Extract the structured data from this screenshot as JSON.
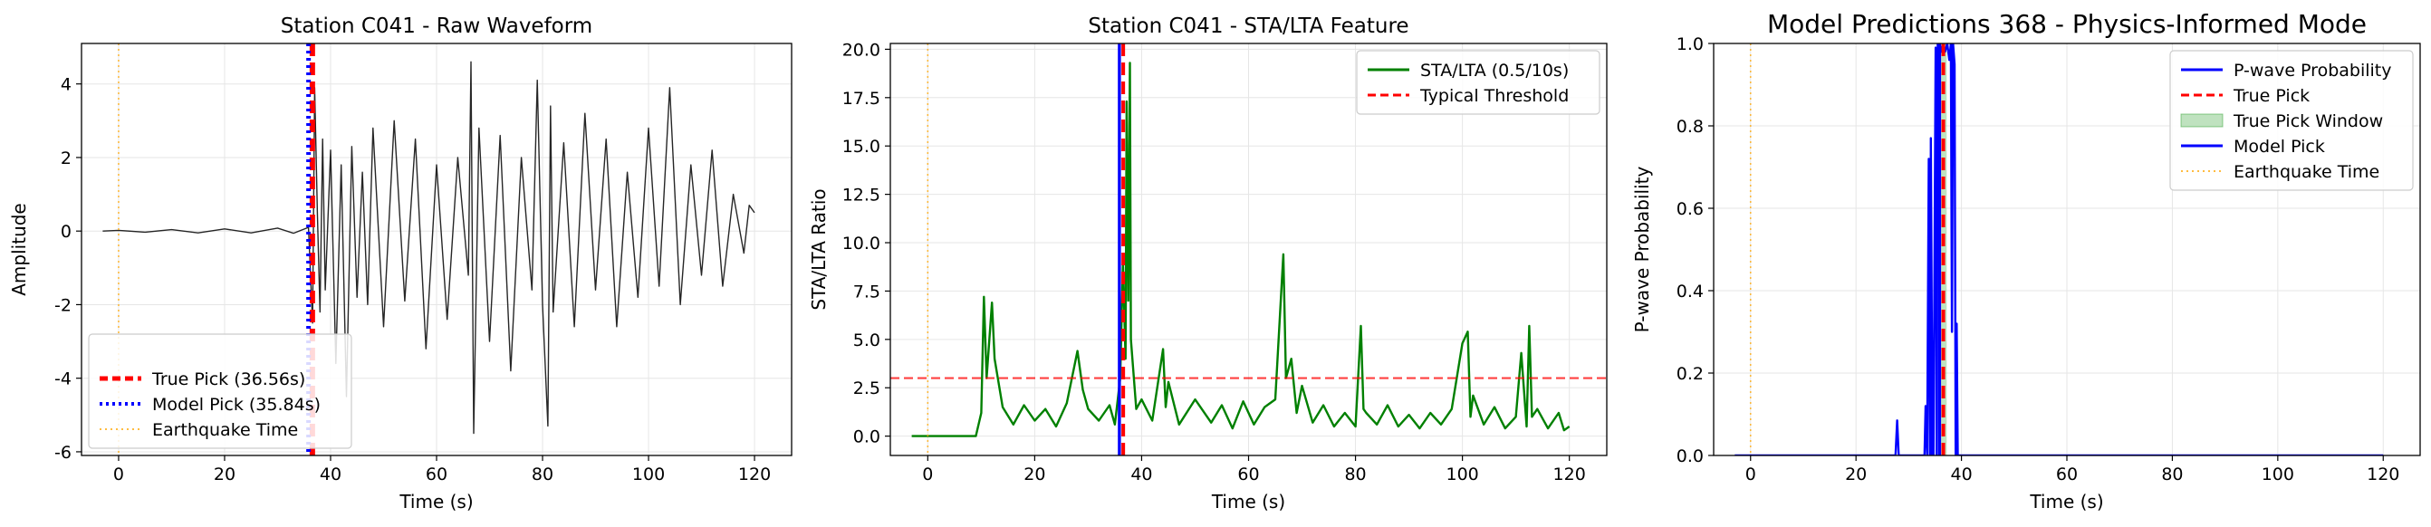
{
  "chart_data": [
    {
      "type": "line",
      "title": "Station C041 - Raw Waveform",
      "xlabel": "Time (s)",
      "ylabel": "Amplitude",
      "xlim": [
        -7,
        127
      ],
      "ylim": [
        -6.1,
        5.1
      ],
      "xticks": [
        0,
        20,
        40,
        60,
        80,
        100,
        120
      ],
      "yticks": [
        -6,
        -4,
        -2,
        0,
        2,
        4
      ],
      "grid": true,
      "legend_position": "lower-left",
      "series": [
        {
          "name": "Waveform",
          "color": "#000000",
          "x": [
            -3,
            0,
            5,
            10,
            15,
            20,
            25,
            30,
            33,
            35.84,
            36.6,
            37,
            37.5,
            38,
            38.5,
            39,
            40,
            41,
            42,
            43,
            44,
            45,
            46,
            47,
            48,
            50,
            52,
            54,
            56,
            58,
            60,
            62,
            64,
            66,
            66.5,
            67,
            68,
            70,
            72,
            74,
            76,
            78,
            79,
            80,
            81,
            81.5,
            82,
            84,
            86,
            88,
            90,
            92,
            94,
            96,
            98,
            100,
            102,
            104,
            106,
            108,
            110,
            112,
            114,
            116,
            118,
            119,
            120
          ],
          "y": [
            0,
            0.02,
            -0.03,
            0.04,
            -0.05,
            0.06,
            -0.05,
            0.08,
            -0.06,
            0.1,
            -2.5,
            3.9,
            0.5,
            -2.2,
            2.5,
            -1.6,
            2.2,
            -3.6,
            1.8,
            -4.5,
            2.3,
            -1.8,
            1.6,
            -2.0,
            2.8,
            -2.6,
            3.0,
            -1.9,
            2.5,
            -3.2,
            1.8,
            -2.4,
            2.0,
            -1.2,
            4.6,
            -5.5,
            2.8,
            -3.0,
            2.6,
            -3.8,
            2.0,
            -1.6,
            4.1,
            -2.0,
            -5.3,
            3.4,
            -2.2,
            2.4,
            -2.6,
            3.2,
            -1.6,
            2.5,
            -2.6,
            1.6,
            -1.8,
            2.8,
            -1.5,
            3.9,
            -2.0,
            1.8,
            -1.2,
            2.2,
            -1.5,
            1.0,
            -0.6,
            0.7,
            0.5
          ]
        },
        {
          "name": "True Pick (36.56s)",
          "color": "#ff0000",
          "vline": 36.56
        },
        {
          "name": "Model Pick (35.84s)",
          "color": "#0000ff",
          "vline": 35.84
        },
        {
          "name": "Earthquake Time",
          "color": "#ffa500",
          "vline": 0
        }
      ]
    },
    {
      "type": "line",
      "title": "Station C041 - STA/LTA Feature",
      "xlabel": "Time (s)",
      "ylabel": "STA/LTA Ratio",
      "xlim": [
        -7,
        127
      ],
      "ylim": [
        -1,
        20.3
      ],
      "xticks": [
        0,
        20,
        40,
        60,
        80,
        100,
        120
      ],
      "yticks": [
        0.0,
        2.5,
        5.0,
        7.5,
        10.0,
        12.5,
        15.0,
        17.5,
        20.0
      ],
      "grid": true,
      "legend_position": "upper-right",
      "series": [
        {
          "name": "STA/LTA (0.5/10s)",
          "color": "#008000",
          "x": [
            -3,
            9,
            10,
            10.5,
            11,
            12,
            12.5,
            14,
            16,
            18,
            20,
            22,
            24,
            26,
            28,
            29,
            30,
            32,
            34,
            35,
            36,
            36.5,
            37,
            37.2,
            37.5,
            37.8,
            38,
            39,
            40,
            42,
            44,
            44.5,
            45,
            47,
            50,
            53,
            55,
            57,
            59,
            61,
            63,
            65,
            66.5,
            67,
            68,
            69,
            70,
            72,
            74,
            76,
            78,
            80,
            81,
            81.5,
            82,
            84,
            86,
            88,
            90,
            92,
            94,
            96,
            98,
            100,
            101,
            101.5,
            102,
            104,
            106,
            108,
            110,
            111,
            112,
            112.5,
            113,
            114,
            116,
            118,
            119,
            120
          ],
          "y": [
            0,
            0,
            1.2,
            7.2,
            3.0,
            6.9,
            4.0,
            1.5,
            0.6,
            1.6,
            0.8,
            1.4,
            0.5,
            1.7,
            4.4,
            2.4,
            1.4,
            0.8,
            1.6,
            0.6,
            3.0,
            9.0,
            4.0,
            17.3,
            7.0,
            19.3,
            5.0,
            1.4,
            1.9,
            0.8,
            4.5,
            1.5,
            2.8,
            0.6,
            1.9,
            0.7,
            1.6,
            0.4,
            1.8,
            0.6,
            1.5,
            1.9,
            9.4,
            3.0,
            4.0,
            1.2,
            2.6,
            0.7,
            1.6,
            0.5,
            1.2,
            0.5,
            5.7,
            1.4,
            1.2,
            0.6,
            1.6,
            0.5,
            1.1,
            0.4,
            1.2,
            0.6,
            1.4,
            4.8,
            5.4,
            1.0,
            2.1,
            0.6,
            1.5,
            0.4,
            1.0,
            4.3,
            0.5,
            5.7,
            1.0,
            1.4,
            0.4,
            1.2,
            0.3,
            0.5
          ]
        },
        {
          "name": "Typical Threshold",
          "color": "#ff0000",
          "hline": 3.0
        },
        {
          "name": "True Pick",
          "color": "#ff0000",
          "vline": 36.56
        },
        {
          "name": "Model Pick",
          "color": "#0000ff",
          "vline": 35.84
        },
        {
          "name": "Earthquake Time",
          "color": "#ffa500",
          "vline": 0
        }
      ]
    },
    {
      "type": "line",
      "title": "Model Predictions 368 - Physics-Informed Mode",
      "xlabel": "Time (s)",
      "ylabel": "P-wave Probability",
      "xlim": [
        -7,
        127
      ],
      "ylim": [
        0,
        1
      ],
      "xticks": [
        0,
        20,
        40,
        60,
        80,
        100,
        120
      ],
      "yticks": [
        0.0,
        0.2,
        0.4,
        0.6,
        0.8,
        1.0
      ],
      "grid": true,
      "legend_position": "upper-right",
      "series": [
        {
          "name": "P-wave Probability",
          "color": "#0000ff",
          "x": [
            -3,
            27.5,
            27.8,
            28.1,
            33,
            33.2,
            33.5,
            33.8,
            34.0,
            34.1,
            34.2,
            34.5,
            34.7,
            35.1,
            35.3,
            35.5,
            35.84,
            36.2,
            36.5,
            36.9,
            37.3,
            37.7,
            38,
            38.2,
            38.4,
            38.7,
            38.9,
            39.1,
            39.3,
            120
          ],
          "y": [
            0,
            0,
            0.085,
            0,
            0,
            0.12,
            0,
            0.72,
            0,
            0,
            0.77,
            0,
            0,
            0.99,
            0,
            1.0,
            1.0,
            0.98,
            1.0,
            0.98,
            1.0,
            0.96,
            1.0,
            0.3,
            1.0,
            0.95,
            0,
            0.32,
            0,
            0
          ]
        },
        {
          "name": "True Pick",
          "color": "#ff0000",
          "vline": 36.56
        },
        {
          "name": "True Pick Window",
          "color": "#2ca02c",
          "span": [
            35.8,
            37.2
          ]
        },
        {
          "name": "Model Pick",
          "color": "#0000ff",
          "vline": 35.84
        },
        {
          "name": "Earthquake Time",
          "color": "#ffa500",
          "vline": 0
        }
      ]
    }
  ]
}
